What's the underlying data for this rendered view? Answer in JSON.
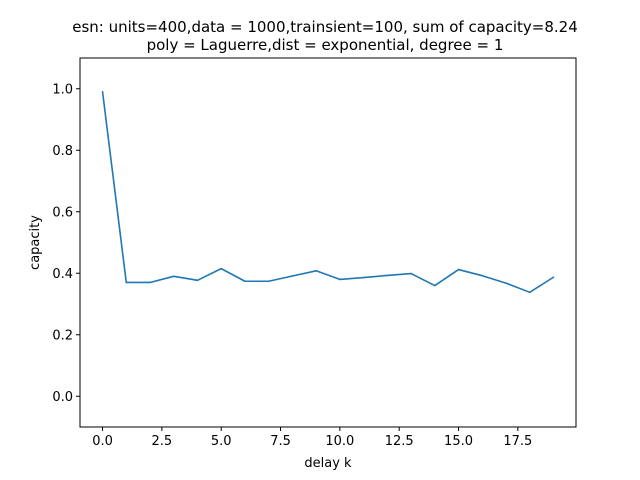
{
  "chart_data": {
    "type": "line",
    "title_line1": "esn: units=400,data = 1000,trainsient=100, sum of capacity=8.24",
    "title_line2": "poly = Laguerre,dist = exponential, degree = 1",
    "xlabel": "delay k",
    "ylabel": "capacity",
    "xlim": [
      -0.95,
      19.95
    ],
    "ylim": [
      -0.1,
      1.1
    ],
    "x_ticks": [
      0.0,
      2.5,
      5.0,
      7.5,
      10.0,
      12.5,
      15.0,
      17.5
    ],
    "x_tick_labels": [
      "0.0",
      "2.5",
      "5.0",
      "7.5",
      "10.0",
      "12.5",
      "15.0",
      "17.5"
    ],
    "y_ticks": [
      0.0,
      0.2,
      0.4,
      0.6,
      0.8,
      1.0
    ],
    "y_tick_labels": [
      "0.0",
      "0.2",
      "0.4",
      "0.6",
      "0.8",
      "1.0"
    ],
    "grid": false,
    "series": [
      {
        "name": "capacity",
        "color": "#1f77b4",
        "x": [
          0,
          1,
          2,
          3,
          4,
          5,
          6,
          7,
          8,
          9,
          10,
          11,
          12,
          13,
          14,
          15,
          16,
          17,
          18,
          19
        ],
        "values": [
          0.99,
          0.37,
          0.37,
          0.39,
          0.377,
          0.415,
          0.374,
          0.374,
          0.391,
          0.408,
          0.38,
          0.386,
          0.393,
          0.399,
          0.36,
          0.412,
          0.392,
          0.368,
          0.338,
          0.387
        ]
      }
    ]
  }
}
